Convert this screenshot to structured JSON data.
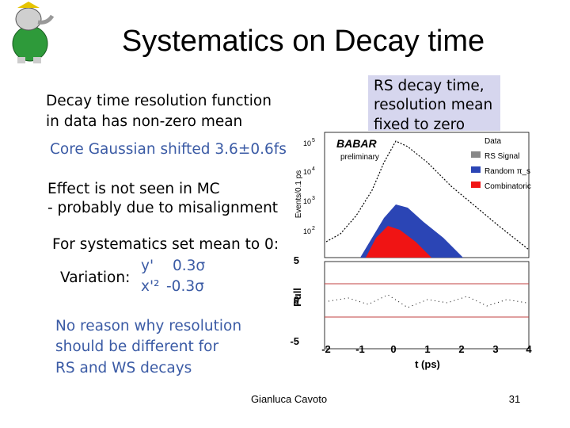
{
  "slide": {
    "title": "Systematics on Decay time",
    "body": {
      "line1": "Decay time resolution function",
      "line2": "in data has non-zero mean",
      "core": "Core Gaussian shifted 3.6±0.6fs",
      "mc1": "Effect is not seen in MC",
      "mc2": "- probably due to misalignment",
      "syst": "For systematics set mean to 0:",
      "variation": {
        "label": "Variation:",
        "y_name": "y'",
        "y_value": "0.3σ",
        "x_name": "x'²",
        "x_value": "-0.3σ"
      },
      "reason": [
        "No reason why resolution",
        "should be different for",
        "RS and WS decays"
      ]
    },
    "box": [
      "RS decay time,",
      "resolution mean",
      "fixed to zero"
    ],
    "plot": {
      "experiment": "BABAR",
      "note": "preliminary",
      "y_label": "Events/0.1 ps",
      "y_ticks": [
        {
          "base": "10",
          "exp": "5"
        },
        {
          "base": "10",
          "exp": "4"
        },
        {
          "base": "10",
          "exp": "3"
        },
        {
          "base": "10",
          "exp": "2"
        }
      ],
      "legend": [
        "Data",
        "RS Signal",
        "Random π_s",
        "Combinatoric"
      ],
      "pull_label": "Pull",
      "pull_ticks": [
        "5",
        "0",
        "-5"
      ],
      "x_ticks": [
        "-2",
        "-1",
        "0",
        "1",
        "2",
        "3",
        "4"
      ],
      "x_label": "t (ps)"
    },
    "footer": {
      "author": "Gianluca Cavoto",
      "page": "31"
    }
  }
}
